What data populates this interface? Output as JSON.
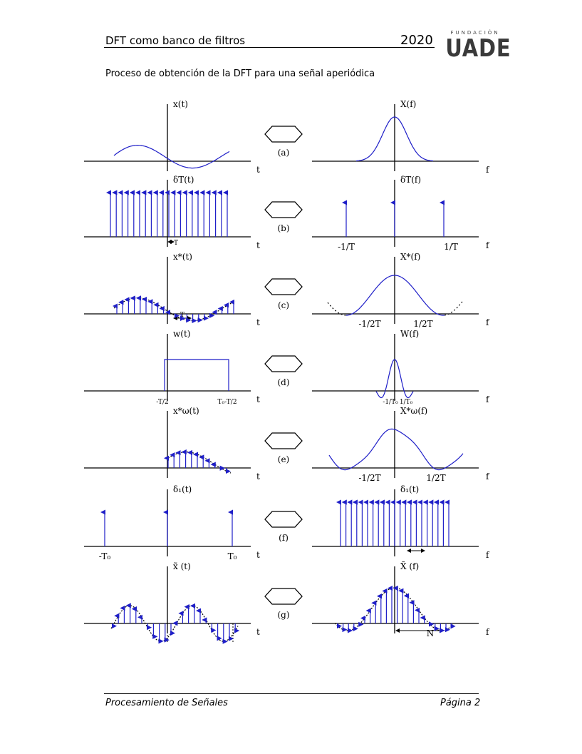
{
  "header": {
    "title": "DFT como banco de filtros",
    "year": "2020"
  },
  "logo": {
    "small": "FUNDACIÓN",
    "big": "UADE"
  },
  "section_title": "Proceso de obtención de la DFT para una señal aperiódica",
  "footer": {
    "left": "Procesamiento de Señales",
    "right": "Página 2"
  },
  "colors": {
    "signal": "#1f1fc8",
    "axis": "#000000"
  },
  "figure": {
    "rows": [
      {
        "caption": "(a)",
        "left_label": "x(t)",
        "right_label": "X(f)",
        "left_axis": "t",
        "right_axis": "f"
      },
      {
        "caption": "(b)",
        "left_label": "δT(t)",
        "right_label": "δT(f)",
        "left_axis": "t",
        "right_axis": "f",
        "left_tick": "T",
        "right_ticks": [
          "-1/T",
          "1/T"
        ]
      },
      {
        "caption": "(c)",
        "left_label": "x*(t)",
        "right_label": "X*(f)",
        "left_axis": "t",
        "right_axis": "f",
        "left_tick": "T",
        "right_ticks": [
          "-1/2T",
          "1/2T"
        ]
      },
      {
        "caption": "(d)",
        "left_label": "w(t)",
        "right_label": "W(f)",
        "left_axis": "t",
        "right_axis": "f",
        "left_ticks": [
          "-T/2",
          "T₀-T/2"
        ],
        "right_ticks": [
          "-1/T₀",
          "1/T₀"
        ]
      },
      {
        "caption": "(e)",
        "left_label": "x*ω(t)",
        "right_label": "X*ω(f)",
        "left_axis": "t",
        "right_axis": "f",
        "right_ticks": [
          "-1/2T",
          "1/2T"
        ]
      },
      {
        "caption": "(f)",
        "left_label": "δ₁(t)",
        "right_label": "δ₁(t)",
        "left_axis": "t",
        "right_axis": "f",
        "left_ticks": [
          "-T₀",
          "T₀"
        ]
      },
      {
        "caption": "(g)",
        "left_label": "x̃ (t)",
        "right_label": "X̃ (f)",
        "left_axis": "t",
        "right_axis": "f",
        "right_tick": "N"
      }
    ]
  }
}
